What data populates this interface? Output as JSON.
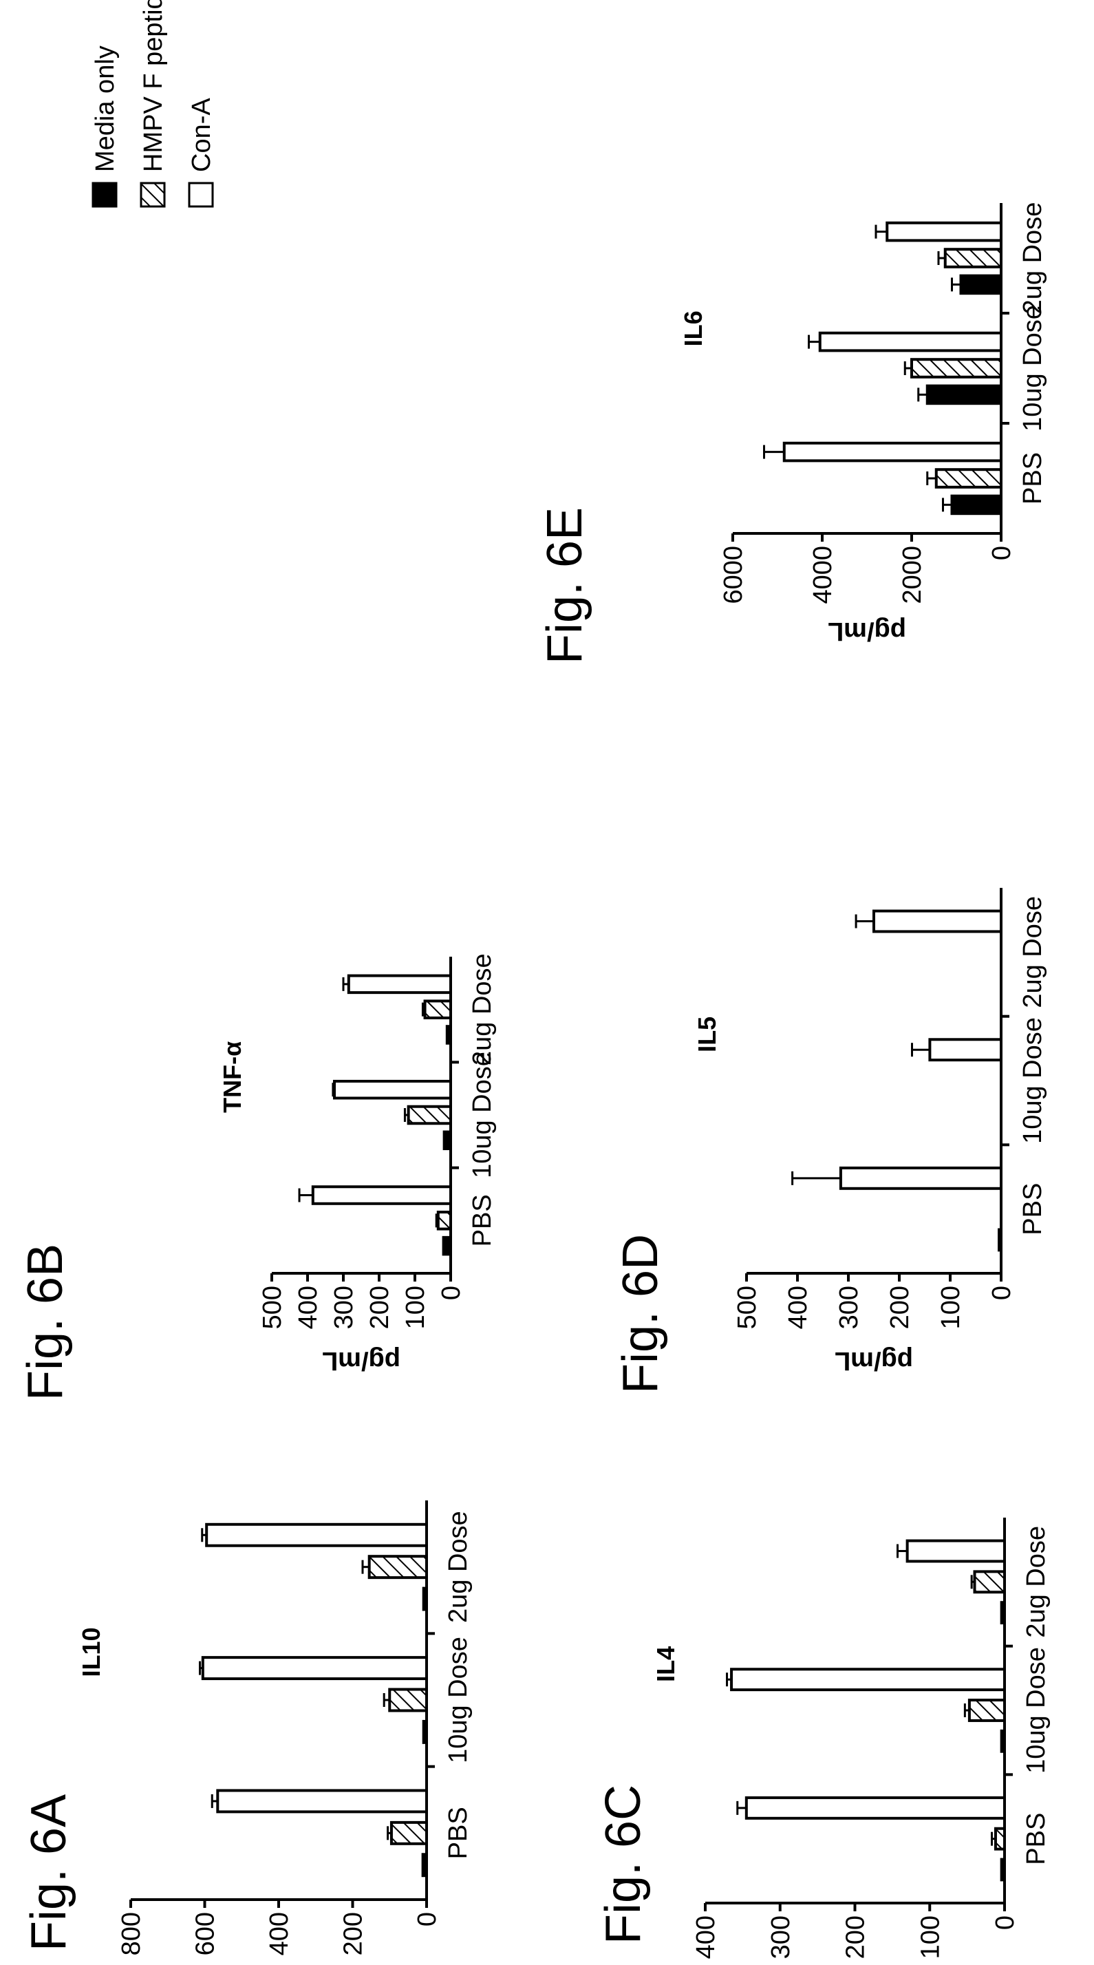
{
  "colors": {
    "media": "#000000",
    "hmpv": "hatched",
    "cona": "#ffffff",
    "axis": "#000000"
  },
  "legend": {
    "items": [
      {
        "label": "Media only",
        "style": "solid-black"
      },
      {
        "label": "HMPV F peptide pool",
        "style": "hatched"
      },
      {
        "label": "Con-A",
        "style": "white"
      }
    ]
  },
  "chart_data": [
    {
      "id": "6A",
      "figure_label": "Fig. 6A",
      "type": "bar",
      "title": "IL10",
      "ylabel": "pg/mL",
      "categories": [
        "PBS",
        "10ug Dose",
        "2ug Dose"
      ],
      "ylim": [
        0,
        800
      ],
      "yticks": [
        0,
        200,
        400,
        600,
        800
      ],
      "series": [
        {
          "name": "Media only",
          "values": [
            10,
            8,
            8
          ],
          "errors": [
            0,
            0,
            0
          ]
        },
        {
          "name": "HMPV F peptide pool",
          "values": [
            95,
            100,
            155
          ],
          "errors": [
            10,
            15,
            18
          ]
        },
        {
          "name": "Con-A",
          "values": [
            565,
            605,
            595
          ],
          "errors": [
            15,
            8,
            12
          ]
        }
      ]
    },
    {
      "id": "6B",
      "figure_label": "Fig. 6B",
      "type": "bar",
      "title": "TNF-α",
      "ylabel": "pg/mL",
      "categories": [
        "PBS",
        "10ug Dose",
        "2ug Dose"
      ],
      "ylim": [
        0,
        500
      ],
      "yticks": [
        0,
        100,
        200,
        300,
        400,
        500
      ],
      "series": [
        {
          "name": "Media only",
          "values": [
            20,
            18,
            10
          ],
          "errors": [
            0,
            0,
            0
          ]
        },
        {
          "name": "HMPV F peptide pool",
          "values": [
            35,
            118,
            72
          ],
          "errors": [
            5,
            10,
            6
          ]
        },
        {
          "name": "Con-A",
          "values": [
            385,
            325,
            285
          ],
          "errors": [
            38,
            4,
            15
          ]
        }
      ]
    },
    {
      "id": "6C",
      "figure_label": "Fig. 6C",
      "type": "bar",
      "title": "IL4",
      "ylabel": "pg/mL",
      "categories": [
        "PBS",
        "10ug Dose",
        "2ug Dose"
      ],
      "ylim": [
        0,
        400
      ],
      "yticks": [
        0,
        100,
        200,
        300,
        400
      ],
      "series": [
        {
          "name": "Media only",
          "values": [
            4,
            4,
            4
          ],
          "errors": [
            0,
            0,
            0
          ]
        },
        {
          "name": "HMPV F peptide pool",
          "values": [
            12,
            47,
            40
          ],
          "errors": [
            5,
            6,
            4
          ]
        },
        {
          "name": "Con-A",
          "values": [
            345,
            365,
            130
          ],
          "errors": [
            12,
            6,
            13
          ]
        }
      ]
    },
    {
      "id": "6D",
      "figure_label": "Fig. 6D",
      "type": "bar",
      "title": "IL5",
      "ylabel": "pg/mL",
      "categories": [
        "PBS",
        "10ug Dose",
        "2ug Dose"
      ],
      "ylim": [
        0,
        500
      ],
      "yticks": [
        0,
        100,
        200,
        300,
        400,
        500
      ],
      "series": [
        {
          "name": "Media only",
          "values": [
            4,
            0,
            0
          ],
          "errors": [
            0,
            0,
            0
          ]
        },
        {
          "name": "HMPV F peptide pool",
          "values": [
            0,
            0,
            0
          ],
          "errors": [
            0,
            0,
            0
          ]
        },
        {
          "name": "Con-A",
          "values": [
            315,
            140,
            250
          ],
          "errors": [
            95,
            35,
            35
          ]
        }
      ]
    },
    {
      "id": "6E",
      "figure_label": "Fig. 6E",
      "type": "bar",
      "title": "IL6",
      "ylabel": "pg/mL",
      "categories": [
        "PBS",
        "10ug Dose",
        "2ug Dose"
      ],
      "ylim": [
        0,
        6000
      ],
      "yticks": [
        0,
        2000,
        4000,
        6000
      ],
      "series": [
        {
          "name": "Media only",
          "values": [
            1100,
            1650,
            900
          ],
          "errors": [
            200,
            200,
            200
          ]
        },
        {
          "name": "HMPV F peptide pool",
          "values": [
            1450,
            2000,
            1250
          ],
          "errors": [
            200,
            150,
            150
          ]
        },
        {
          "name": "Con-A",
          "values": [
            4850,
            4050,
            2550
          ],
          "errors": [
            450,
            250,
            250
          ]
        }
      ]
    }
  ]
}
